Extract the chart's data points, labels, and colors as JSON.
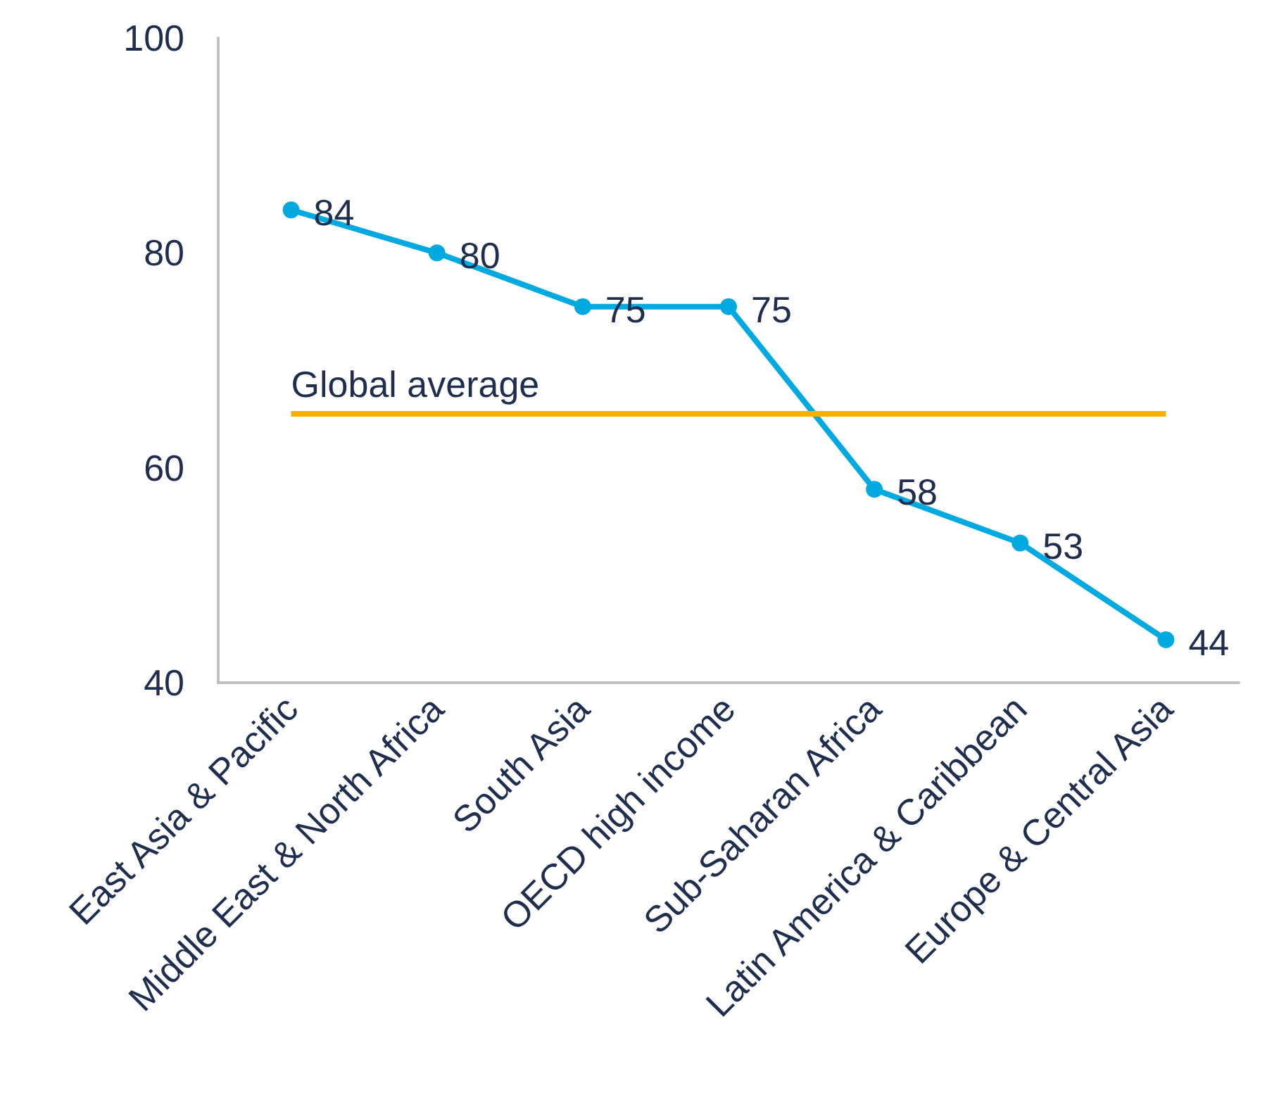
{
  "chart_data": {
    "type": "line",
    "categories": [
      "East Asia & Pacific",
      "Middle East & North Africa",
      "South Asia",
      "OECD high income",
      "Sub-Saharan Africa",
      "Latin America & Caribbean",
      "Europe & Central Asia"
    ],
    "series": [
      {
        "color": "#00a9e0",
        "values": [
          84,
          80,
          75,
          75,
          58,
          53,
          44
        ]
      }
    ],
    "ylim": [
      40,
      100
    ],
    "yticks": [
      40,
      60,
      80,
      100
    ],
    "grid": false,
    "marker": "circle",
    "line_style": "solid",
    "data_labels": true,
    "ref_lines": [
      {
        "axis": "y",
        "value": 65,
        "label": "Global average",
        "color": "#f5b000",
        "line_style": "solid"
      }
    ]
  }
}
